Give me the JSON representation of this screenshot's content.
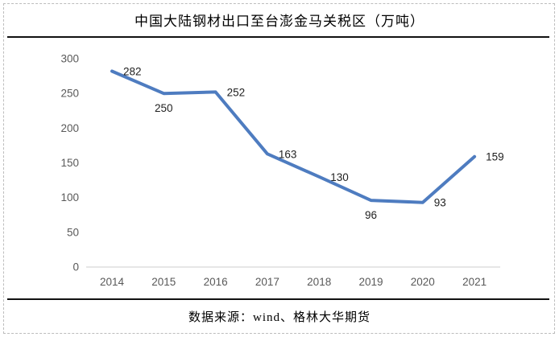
{
  "header": {
    "title": "中国大陆钢材出口至台澎金马关税区（万吨）"
  },
  "footer": {
    "source": "数据来源：wind、格林大华期货"
  },
  "chart_data": {
    "type": "line",
    "title": "中国大陆钢材出口至台澎金马关税区（万吨）",
    "categories": [
      "2014",
      "2015",
      "2016",
      "2017",
      "2018",
      "2019",
      "2020",
      "2021"
    ],
    "series": [
      {
        "name": "中国大陆钢材出口至台澎金马关税区（万吨）",
        "values": [
          282,
          250,
          252,
          163,
          130,
          96,
          93,
          159
        ]
      }
    ],
    "data_labels_shown": true,
    "label_placement": [
      "right",
      "below",
      "right",
      "right",
      "right",
      "below",
      "right",
      "right"
    ],
    "ylim": [
      0,
      300
    ],
    "yticks": [
      0,
      50,
      100,
      150,
      200,
      250,
      300
    ],
    "xlabel": "",
    "ylabel": "",
    "gridlines": false,
    "legend": "none",
    "colors": {
      "line": "#4E7CC0",
      "axis_labels": "#595959",
      "data_labels": "#1f1f1f",
      "axis_line": "#d6d6d6"
    }
  }
}
